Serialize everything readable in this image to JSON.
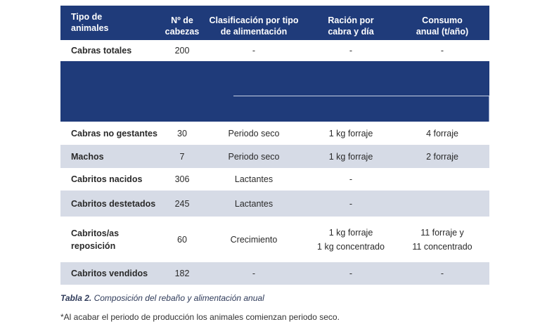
{
  "table": {
    "headers": [
      [
        "Tipo de",
        "animales"
      ],
      [
        "Nº de",
        "cabezas"
      ],
      [
        "Clasificación por tipo",
        "de alimentación"
      ],
      [
        "Ración por",
        "cabra y día"
      ],
      [
        "Consumo",
        "anual (t/año)"
      ]
    ],
    "rows": [
      {
        "tipo": "Cabras totales",
        "cabezas": "200",
        "clasificacion": "-",
        "racion": "-",
        "consumo": "-"
      },
      {
        "tipo": "Cabras no gestantes",
        "cabezas": "30",
        "clasificacion": "Periodo seco",
        "racion": "1 kg forraje",
        "consumo": "4 forraje"
      },
      {
        "tipo": "Machos",
        "cabezas": "7",
        "clasificacion": "Periodo seco",
        "racion": "1 kg forraje",
        "consumo": "2 forraje"
      },
      {
        "tipo": "Cabritos nacidos",
        "cabezas": "306",
        "clasificacion": "Lactantes",
        "racion": "-",
        "consumo": ""
      },
      {
        "tipo": "Cabritos destetados",
        "cabezas": "245",
        "clasificacion": "Lactantes",
        "racion": "-",
        "consumo": ""
      },
      {
        "tipo_lines": [
          "Cabritos/as",
          "reposición"
        ],
        "cabezas": "60",
        "clasificacion": "Crecimiento",
        "racion_lines": [
          "1 kg forraje",
          "1 kg concentrado"
        ],
        "consumo_lines": [
          "11 forraje y",
          "11 concentrado"
        ]
      },
      {
        "tipo": "Cabritos vendidos",
        "cabezas": "182",
        "clasificacion": "-",
        "racion": "-",
        "consumo": "-"
      }
    ]
  },
  "caption": {
    "label": "Tabla 2.",
    "text": "Composición del rebaño y alimentación anual"
  },
  "footnote": "*Al acabar el periodo de producción los animales comienzan periodo seco.",
  "colors": {
    "header_bg": "#1f3b7a",
    "shaded_row": "#d6dbe6"
  }
}
